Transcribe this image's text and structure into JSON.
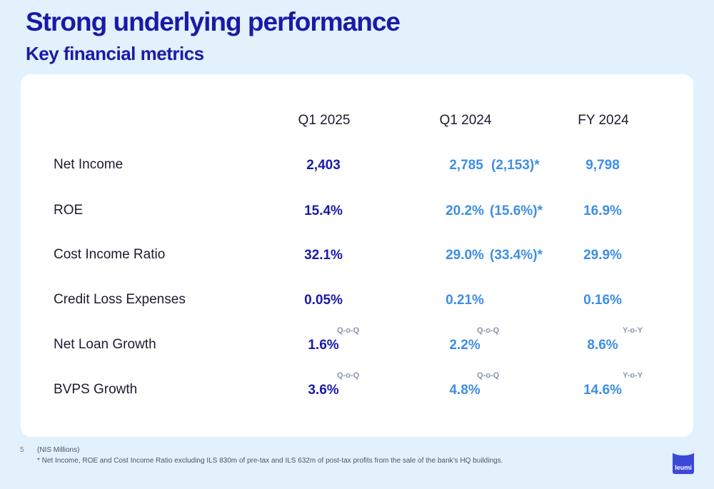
{
  "header": {
    "title": "Strong underlying performance",
    "subtitle": "Key financial metrics"
  },
  "columns": [
    "Q1 2025",
    "Q1 2024",
    "FY 2024"
  ],
  "rows": [
    {
      "label": "Net Income",
      "q1_2025": "2,403",
      "q1_2024": "2,785",
      "adjusted": "(2,153)*",
      "fy_2024": "9,798"
    },
    {
      "label": "ROE",
      "q1_2025": "15.4%",
      "q1_2024": "20.2%",
      "adjusted": "(15.6%)*",
      "fy_2024": "16.9%"
    },
    {
      "label": "Cost Income Ratio",
      "q1_2025": "32.1%",
      "q1_2024": "29.0%",
      "adjusted": "(33.4%)*",
      "fy_2024": "29.9%"
    },
    {
      "label": "Credit Loss Expenses",
      "q1_2025": "0.05%",
      "q1_2024": "0.21%",
      "fy_2024": "0.16%"
    },
    {
      "label": "Net Loan Growth",
      "q1_2025": "1.6%",
      "q1_2025_tag": "Q-o-Q",
      "q1_2024": "2.2%",
      "q1_2024_tag": "Q-o-Q",
      "fy_2024": "8.6%",
      "fy_2024_tag": "Y-o-Y"
    },
    {
      "label": "BVPS Growth",
      "q1_2025": "3.6%",
      "q1_2025_tag": "Q-o-Q",
      "q1_2024": "4.8%",
      "q1_2024_tag": "Q-o-Q",
      "fy_2024": "14.6%",
      "fy_2024_tag": "Y-o-Y"
    }
  ],
  "footer": {
    "page_number": "5",
    "units": "(NIS Millions)",
    "note": "* Net Income, ROE and Cost Income Ratio excluding ILS 830m of pre-tax and ILS 632m of post-tax profits from the sale of the bank’s HQ buildings.",
    "logo_text": "leumi"
  },
  "colors": {
    "brand_dark": "#1a1aa8",
    "value_light": "#3d8ee6",
    "background": "#e2f1fc"
  }
}
